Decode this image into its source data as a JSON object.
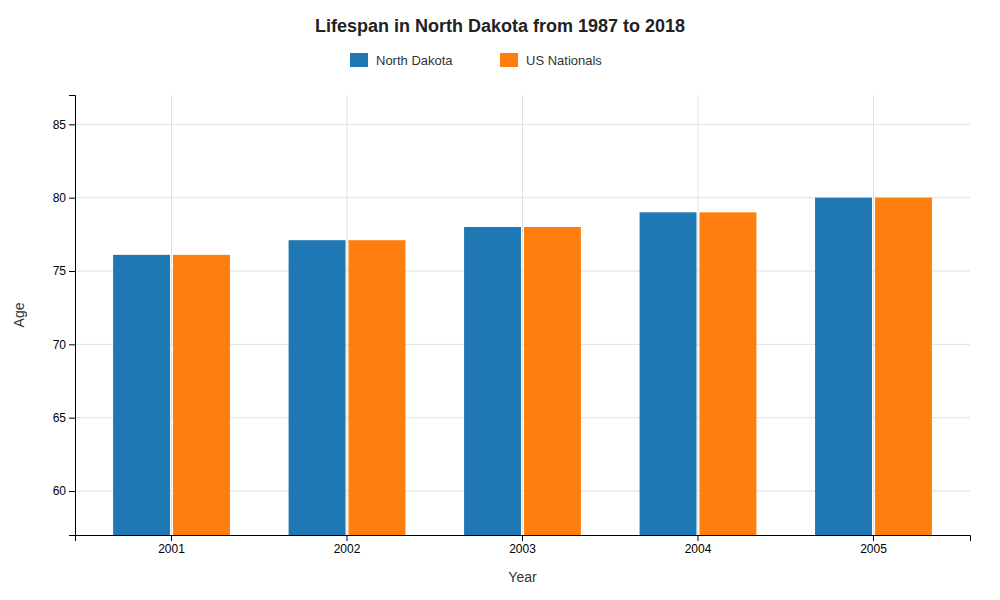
{
  "chart_data": {
    "type": "bar",
    "title": "Lifespan in North Dakota from 1987 to 2018",
    "x_label": "Year",
    "y_label": "Age",
    "categories": [
      "2001",
      "2002",
      "2003",
      "2004",
      "2005"
    ],
    "series": [
      {
        "name": "North Dakota",
        "values": [
          76.1,
          77.1,
          78.0,
          79.0,
          80.0
        ]
      },
      {
        "name": "US Nationals",
        "values": [
          76.1,
          77.1,
          78.0,
          79.0,
          80.0
        ]
      }
    ],
    "ylim": [
      57,
      87
    ],
    "yticks": [
      60,
      65,
      70,
      75,
      80,
      85
    ],
    "grid": true,
    "legend": "top"
  }
}
